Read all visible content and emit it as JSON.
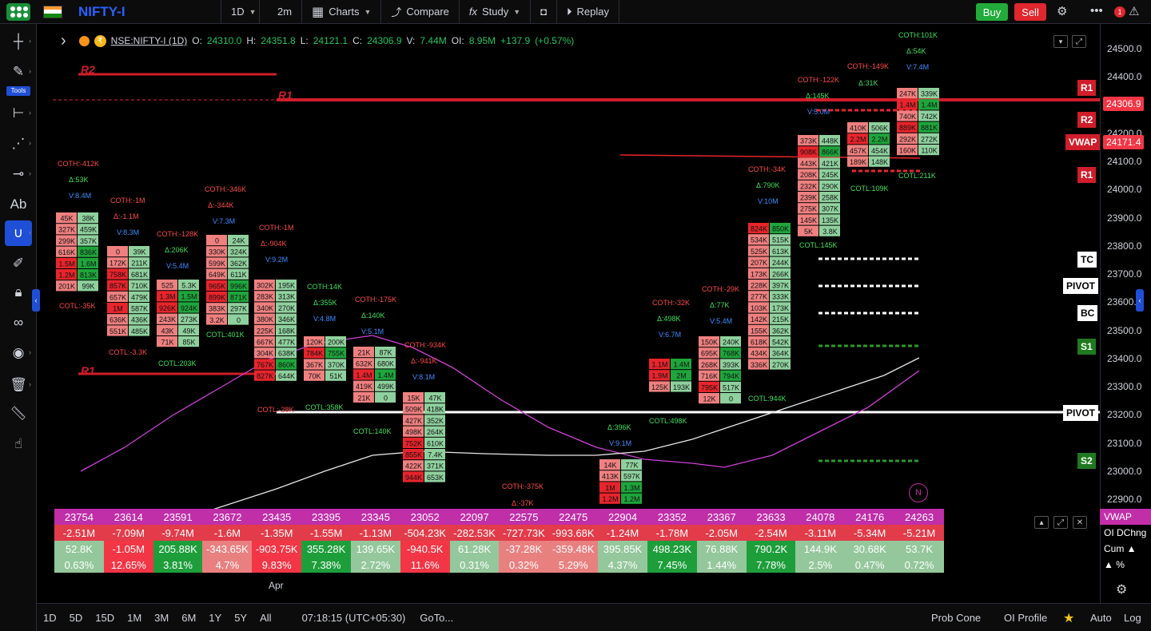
{
  "topbar": {
    "symbol": "NIFTY-I",
    "interval": "1D",
    "sub_interval": "2m",
    "charts_label": "Charts",
    "compare_label": "Compare",
    "study_label": "Study",
    "replay_label": "Replay",
    "buy_label": "Buy",
    "sell_label": "Sell",
    "notification_count": "1"
  },
  "lefttool": {
    "tools_label": "Tools"
  },
  "legend": {
    "symbol": "NSE:NIFTY-I (1D)",
    "o_key": "O:",
    "o_val": "24310.0",
    "h_key": "H:",
    "h_val": "24351.8",
    "l_key": "L:",
    "l_val": "24121.1",
    "c_key": "C:",
    "c_val": "24306.9",
    "v_key": "V:",
    "v_val": "7.44M",
    "oi_key": "OI:",
    "oi_val": "8.95M",
    "chg": "+137.9",
    "chg_pct": "(+0.57%)"
  },
  "price_axis": {
    "ticks": [
      "24500.0",
      "24400.0",
      "24306.9",
      "24200.0",
      "24171.4",
      "24100.0",
      "24000.0",
      "23900.0",
      "23800.0",
      "23700.0",
      "23600.0",
      "23500.0",
      "23400.0",
      "23300.0",
      "23200.0",
      "23100.0",
      "23000.0",
      "22900.0"
    ],
    "last_price": "24306.9",
    "vwap_label": "VWAP",
    "vwap_price": "24171.4"
  },
  "levels": {
    "r1_right_a": "R1",
    "r2_right": "R2",
    "r1_right_b": "R1",
    "tc": "TC",
    "pivot_top": "PIVOT",
    "bc": "BC",
    "s1": "S1",
    "pivot_bottom": "PIVOT",
    "s2": "S2",
    "r2_left": "R2",
    "r1_left_a": "R1",
    "r1_left_b": "R1"
  },
  "annotations": [
    {
      "text": "COTH:-412K",
      "color": "red"
    },
    {
      "text": "Δ:53K",
      "color": "green"
    },
    {
      "text": "V:8.4M",
      "color": "blue"
    },
    {
      "text": "COTH:-1M",
      "color": "red"
    },
    {
      "text": "Δ:-1.1M",
      "color": "red"
    },
    {
      "text": "V:8.3M",
      "color": "blue"
    },
    {
      "text": "COTH:-346K",
      "color": "red"
    },
    {
      "text": "Δ:-344K",
      "color": "red"
    },
    {
      "text": "V:7.3M",
      "color": "blue"
    },
    {
      "text": "COTH:-128K",
      "color": "red"
    },
    {
      "text": "Δ:206K",
      "color": "green"
    },
    {
      "text": "V:5.4M",
      "color": "blue"
    },
    {
      "text": "COTH:-1M",
      "color": "red"
    },
    {
      "text": "Δ:-904K",
      "color": "red"
    },
    {
      "text": "V:9.2M",
      "color": "blue"
    },
    {
      "text": "COTH:14K",
      "color": "green"
    },
    {
      "text": "Δ:355K",
      "color": "green"
    },
    {
      "text": "V:4.8M",
      "color": "blue"
    },
    {
      "text": "COTH:-175K",
      "color": "red"
    },
    {
      "text": "Δ:140K",
      "color": "green"
    },
    {
      "text": "V:5.1M",
      "color": "blue"
    },
    {
      "text": "COTH:-934K",
      "color": "red"
    },
    {
      "text": "Δ:-941K",
      "color": "red"
    },
    {
      "text": "V:8.1M",
      "color": "blue"
    },
    {
      "text": "COTH:-375K",
      "color": "red"
    },
    {
      "text": "Δ:-37K",
      "color": "red"
    },
    {
      "text": "Δ:396K",
      "color": "green"
    },
    {
      "text": "V:9.1M",
      "color": "blue"
    },
    {
      "text": "COTH:-32K",
      "color": "red"
    },
    {
      "text": "Δ:498K",
      "color": "green"
    },
    {
      "text": "V:6.7M",
      "color": "blue"
    },
    {
      "text": "COTH:-29K",
      "color": "red"
    },
    {
      "text": "Δ:77K",
      "color": "green"
    },
    {
      "text": "V:5.4M",
      "color": "blue"
    },
    {
      "text": "COTH:-34K",
      "color": "red"
    },
    {
      "text": "Δ:790K",
      "color": "green"
    },
    {
      "text": "V:10M",
      "color": "blue"
    },
    {
      "text": "COTH:-122K",
      "color": "red"
    },
    {
      "text": "Δ:145K",
      "color": "green"
    },
    {
      "text": "V:5.0M",
      "color": "blue"
    },
    {
      "text": "COTH:-149K",
      "color": "red"
    },
    {
      "text": "Δ:31K",
      "color": "green"
    },
    {
      "text": "COTH:101K",
      "color": "green"
    },
    {
      "text": "Δ:54K",
      "color": "green"
    },
    {
      "text": "V:7.4M",
      "color": "blue"
    },
    {
      "text": "COTL:-35K",
      "color": "red"
    },
    {
      "text": "COTL:-3.3K",
      "color": "red"
    },
    {
      "text": "COTL:203K",
      "color": "green"
    },
    {
      "text": "COTL:401K",
      "color": "green"
    },
    {
      "text": "COTL:-28K",
      "color": "red"
    },
    {
      "text": "COTL:358K",
      "color": "green"
    },
    {
      "text": "COTL:140K",
      "color": "green"
    },
    {
      "text": "COTL:498K",
      "color": "green"
    },
    {
      "text": "COTL:944K",
      "color": "green"
    },
    {
      "text": "COTL:145K",
      "color": "green"
    },
    {
      "text": "COTL:109K",
      "color": "green"
    },
    {
      "text": "COTL:211K",
      "color": "green"
    }
  ],
  "footprint_cells": [
    [
      "45K",
      "38K"
    ],
    [
      "327K",
      "459K"
    ],
    [
      "299K",
      "357K"
    ],
    [
      "616K",
      "836K"
    ],
    [
      "1.5M",
      "1.6M"
    ],
    [
      "1.2M",
      "813K"
    ],
    [
      "201K",
      "99K"
    ],
    [
      "0",
      "39K"
    ],
    [
      "172K",
      "211K"
    ],
    [
      "758K",
      "681K"
    ],
    [
      "857K",
      "710K"
    ],
    [
      "657K",
      "479K"
    ],
    [
      "1M",
      "587K"
    ],
    [
      "636K",
      "436K"
    ],
    [
      "551K",
      "485K"
    ],
    [
      "525",
      "5.3K"
    ],
    [
      "1.3M",
      "1.5M"
    ],
    [
      "926K",
      "924K"
    ],
    [
      "243K",
      "273K"
    ],
    [
      "43K",
      "49K"
    ],
    [
      "71K",
      "85K"
    ],
    [
      "0",
      "24K"
    ],
    [
      "330K",
      "324K"
    ],
    [
      "599K",
      "362K"
    ],
    [
      "649K",
      "611K"
    ],
    [
      "965K",
      "996K"
    ],
    [
      "899K",
      "871K"
    ],
    [
      "383K",
      "297K"
    ],
    [
      "3.2K",
      "0"
    ],
    [
      "302K",
      "195K"
    ],
    [
      "283K",
      "313K"
    ],
    [
      "340K",
      "270K"
    ],
    [
      "380K",
      "346K"
    ],
    [
      "225K",
      "168K"
    ],
    [
      "667K",
      "477K"
    ],
    [
      "304K",
      "638K"
    ],
    [
      "767K",
      "860K"
    ],
    [
      "827K",
      "644K"
    ],
    [
      "120K",
      "200K"
    ],
    [
      "784K",
      "755K"
    ],
    [
      "367K",
      "370K"
    ],
    [
      "70K",
      "51K"
    ],
    [
      "21K",
      "87K"
    ],
    [
      "632K",
      "680K"
    ],
    [
      "1.4M",
      "1.4M"
    ],
    [
      "419K",
      "499K"
    ],
    [
      "21K",
      "0"
    ],
    [
      "15K",
      "47K"
    ],
    [
      "509K",
      "418K"
    ],
    [
      "427K",
      "352K"
    ],
    [
      "498K",
      "264K"
    ],
    [
      "752K",
      "610K"
    ],
    [
      "855K",
      "7.4K"
    ],
    [
      "422K",
      "371K"
    ],
    [
      "944K",
      "653K"
    ],
    [
      "14K",
      "77K"
    ],
    [
      "413K",
      "597K"
    ],
    [
      "1M",
      "1.3M"
    ],
    [
      "1.2M",
      "1.2M"
    ],
    [
      "1.1M",
      "1.4M"
    ],
    [
      "1.9M",
      "2M"
    ],
    [
      "125K",
      "193K"
    ],
    [
      "150K",
      "240K"
    ],
    [
      "695K",
      "768K"
    ],
    [
      "268K",
      "393K"
    ],
    [
      "716K",
      "794K"
    ],
    [
      "795K",
      "517K"
    ],
    [
      "12K",
      "0"
    ],
    [
      "824K",
      "850K"
    ],
    [
      "534K",
      "515K"
    ],
    [
      "525K",
      "613K"
    ],
    [
      "207K",
      "244K"
    ],
    [
      "173K",
      "266K"
    ],
    [
      "228K",
      "397K"
    ],
    [
      "277K",
      "333K"
    ],
    [
      "103K",
      "173K"
    ],
    [
      "142K",
      "215K"
    ],
    [
      "155K",
      "362K"
    ],
    [
      "618K",
      "542K"
    ],
    [
      "434K",
      "364K"
    ],
    [
      "336K",
      "270K"
    ],
    [
      "373K",
      "448K"
    ],
    [
      "908K",
      "866K"
    ],
    [
      "443K",
      "421K"
    ],
    [
      "208K",
      "245K"
    ],
    [
      "232K",
      "290K"
    ],
    [
      "239K",
      "258K"
    ],
    [
      "275K",
      "307K"
    ],
    [
      "145K",
      "135K"
    ],
    [
      "5K",
      "3.8K"
    ],
    [
      "410K",
      "506K"
    ],
    [
      "2.2M",
      "2.2M"
    ],
    [
      "457K",
      "454K"
    ],
    [
      "189K",
      "148K"
    ],
    [
      "247K",
      "339K"
    ],
    [
      "1.4M",
      "1.4M"
    ],
    [
      "740K",
      "742K"
    ],
    [
      "889K",
      "881K"
    ],
    [
      "292K",
      "272K"
    ],
    [
      "160K",
      "110K"
    ]
  ],
  "x_axis_label": "Apr",
  "table": {
    "close": [
      "23754",
      "23614",
      "23591",
      "23672",
      "23435",
      "23395",
      "23345",
      "23052",
      "22097",
      "22575",
      "22475",
      "22904",
      "23352",
      "23367",
      "23633",
      "24078",
      "24176",
      "24263"
    ],
    "oi_change": [
      "-2.51M",
      "-7.09M",
      "-9.74M",
      "-1.6M",
      "-1.35M",
      "-1.55M",
      "-1.13M",
      "-504.23K",
      "-282.53K",
      "-727.73K",
      "-993.68K",
      "-1.24M",
      "-1.78M",
      "-2.05M",
      "-2.54M",
      "-3.11M",
      "-5.34M",
      "-5.21M"
    ],
    "cum": [
      "52.8K",
      "-1.05M",
      "205.88K",
      "-343.65K",
      "-903.75K",
      "355.28K",
      "139.65K",
      "-940.5K",
      "61.28K",
      "-37.28K",
      "-359.48K",
      "395.85K",
      "498.23K",
      "76.88K",
      "790.2K",
      "144.9K",
      "30.68K",
      "53.7K"
    ],
    "pct": [
      "0.63%",
      "12.65%",
      "3.81%",
      "4.7%",
      "9.83%",
      "7.38%",
      "2.72%",
      "11.6%",
      "0.31%",
      "0.32%",
      "5.29%",
      "4.37%",
      "7.45%",
      "1.44%",
      "7.78%",
      "2.5%",
      "0.47%",
      "0.72%"
    ],
    "cum_sign": [
      "pos",
      "negd",
      "posd",
      "neg",
      "negd",
      "posd",
      "pos",
      "negd",
      "pos",
      "neg",
      "neg",
      "pos",
      "posd",
      "pos",
      "posd",
      "pos",
      "pos",
      "pos"
    ],
    "pct_sign": [
      "pos",
      "negd",
      "posd",
      "neg",
      "negd",
      "posd",
      "pos",
      "negd",
      "pos",
      "neg",
      "neg",
      "pos",
      "posd",
      "pos",
      "posd",
      "pos",
      "pos",
      "pos"
    ],
    "row_labels": [
      "VWAP",
      "OI DChng",
      "Cum ▲",
      "▲ %"
    ]
  },
  "bottombar": {
    "ranges": [
      "1D",
      "5D",
      "15D",
      "1M",
      "3M",
      "6M",
      "1Y",
      "5Y",
      "All"
    ],
    "clock": "07:18:15 (UTC+05:30)",
    "goto": "GoTo...",
    "prob_cone": "Prob Cone",
    "oi_profile": "OI Profile",
    "auto": "Auto",
    "log": "Log"
  },
  "chart_badge": "N",
  "colors": {
    "buy": "#22ab3b",
    "sell": "#e0262e",
    "accent": "#2962ff",
    "vwap_line": "#d040d8",
    "bid_cell": "#f08080",
    "ask_cell": "#8fd19e",
    "imbalance_red": "#e8242c",
    "imbalance_green": "#1ea63c"
  }
}
